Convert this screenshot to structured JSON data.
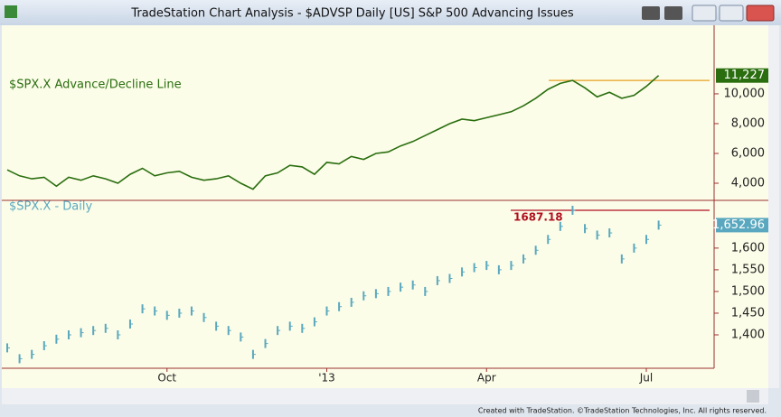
{
  "window": {
    "title": "TradeStation Chart Analysis - $ADVSP Daily [US] S&P 500 Advancing Issues"
  },
  "footer": "Created with TradeStation. ©TradeStation Technologies, Inc. All rights reserved.",
  "chart_data": [
    {
      "type": "line",
      "series": [
        {
          "name": "$SPX.X Advance/Decline Line",
          "color": "#2a6e10",
          "values": [
            4900,
            4500,
            4300,
            4400,
            3800,
            4400,
            4200,
            4500,
            4300,
            4000,
            4600,
            5000,
            4500,
            4700,
            4800,
            4400,
            4200,
            4300,
            4500,
            4000,
            3600,
            4500,
            4700,
            5200,
            5100,
            4600,
            5400,
            5300,
            5800,
            5600,
            6000,
            6100,
            6500,
            6800,
            7200,
            7600,
            8000,
            8300,
            8200,
            8400,
            8600,
            8800,
            9200,
            9700,
            10300,
            10700,
            10900,
            10400,
            9800,
            10100,
            9700,
            9900,
            10500,
            11227,
            null,
            null,
            null,
            null
          ],
          "value_labels": [
            null,
            null,
            null,
            null,
            null,
            null,
            null,
            null,
            null,
            null,
            null,
            null,
            null,
            null,
            null,
            null,
            null,
            null,
            null,
            null,
            null,
            null,
            null,
            null,
            null,
            null,
            null,
            null,
            null,
            null,
            null,
            null,
            null,
            null,
            null,
            null,
            null,
            null,
            null,
            null,
            null,
            null,
            null,
            null,
            null,
            null,
            null,
            null,
            null,
            null,
            null,
            null,
            null,
            "11,227",
            null,
            null,
            null,
            null
          ]
        }
      ],
      "ylim": [
        2850,
        14600
      ],
      "yticks": [
        {
          "value": 4000,
          "label": "4,000"
        },
        {
          "value": 6000,
          "label": "6,000"
        },
        {
          "value": 8000,
          "label": "8,000"
        },
        {
          "value": 10000,
          "label": "10,000"
        }
      ],
      "grid": false,
      "markers": false,
      "reference_line": 10900,
      "reference_color": "#e8a020",
      "reference_labeled": false
    },
    {
      "type": "line",
      "categories": [
        null,
        null,
        null,
        null,
        null,
        null,
        null,
        null,
        null,
        null,
        null,
        null,
        null,
        "Oct",
        null,
        null,
        null,
        null,
        null,
        null,
        null,
        null,
        null,
        null,
        null,
        null,
        "'13",
        null,
        null,
        null,
        null,
        null,
        null,
        null,
        null,
        null,
        null,
        null,
        null,
        "Apr",
        null,
        null,
        null,
        null,
        null,
        null,
        null,
        null,
        null,
        null,
        null,
        null,
        "Jul",
        null,
        null,
        null,
        null,
        null
      ],
      "series": [
        {
          "name": "$SPX.X - Daily",
          "color": "#5aa8bf",
          "values": [
            1370,
            1345,
            1355,
            1375,
            1390,
            1400,
            1405,
            1410,
            1415,
            1400,
            1425,
            1460,
            1455,
            1445,
            1450,
            1455,
            1440,
            1420,
            1410,
            1395,
            1355,
            1380,
            1410,
            1420,
            1415,
            1430,
            1455,
            1465,
            1475,
            1490,
            1495,
            1500,
            1510,
            1515,
            1500,
            1525,
            1530,
            1545,
            1555,
            1560,
            1550,
            1560,
            1575,
            1595,
            1620,
            1650,
            1687.18,
            1645,
            1630,
            1635,
            1575,
            1600,
            1620,
            1652.96,
            null,
            null,
            null,
            null
          ],
          "value_labels": [
            null,
            null,
            null,
            null,
            null,
            null,
            null,
            null,
            null,
            null,
            null,
            null,
            null,
            null,
            null,
            null,
            null,
            null,
            null,
            null,
            null,
            null,
            null,
            null,
            null,
            null,
            null,
            null,
            null,
            null,
            null,
            null,
            null,
            null,
            null,
            null,
            null,
            null,
            null,
            null,
            null,
            null,
            null,
            null,
            null,
            null,
            null,
            null,
            null,
            null,
            null,
            null,
            null,
            "1,652.96",
            null,
            null,
            null,
            null
          ]
        }
      ],
      "ylim": [
        1323,
        1710
      ],
      "yticks": [
        {
          "value": 1400,
          "label": "1,400"
        },
        {
          "value": 1450,
          "label": "1,450"
        },
        {
          "value": 1500,
          "label": "1,500"
        },
        {
          "value": 1550,
          "label": "1,550"
        },
        {
          "value": 1600,
          "label": "1,600"
        }
      ],
      "grid": false,
      "markers": true,
      "reference_line": 1687.18,
      "reference_color": "#b01020",
      "reference_labeled": true
    }
  ]
}
